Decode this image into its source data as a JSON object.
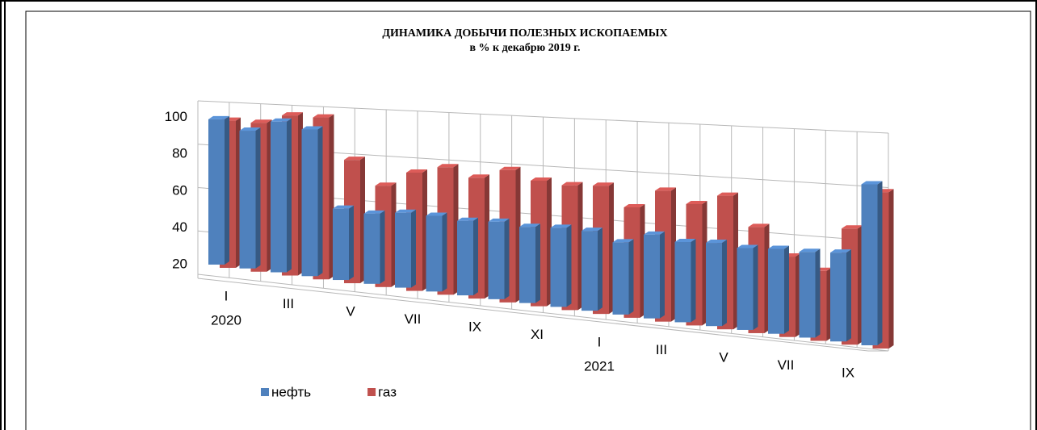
{
  "chart_data": {
    "type": "bar3d",
    "title": "ДИНАМИКА ДОБЫЧИ ПОЛЕЗНЫХ ИСКОПАЕМЫХ",
    "subtitle": "в % к декабрю 2019 г.",
    "categories": [
      "I",
      null,
      "III",
      null,
      "V",
      null,
      "VII",
      null,
      "IX",
      null,
      "XI",
      null,
      "I",
      null,
      "III",
      null,
      "V",
      null,
      "VII",
      null,
      "IX",
      null
    ],
    "year_labels": [
      "2020",
      "2021"
    ],
    "series": [
      {
        "name": "нефть",
        "color": "#4f81bd",
        "values": [
          99,
          94,
          100,
          97,
          57,
          56,
          58,
          58,
          57,
          58,
          57,
          58,
          58,
          54,
          59,
          57,
          58,
          57,
          58,
          58,
          59,
          90
        ]
      },
      {
        "name": "газ",
        "color": "#c0504d",
        "values": [
          100,
          100,
          105,
          105,
          84,
          72,
          80,
          84,
          80,
          85,
          81,
          80,
          81,
          72,
          81,
          76,
          81,
          68,
          56,
          51,
          71,
          88
        ]
      }
    ],
    "ylim": [
      20,
      100
    ],
    "yticks": [
      20,
      40,
      60,
      80,
      100
    ],
    "grid": true,
    "legend": "bottom"
  }
}
